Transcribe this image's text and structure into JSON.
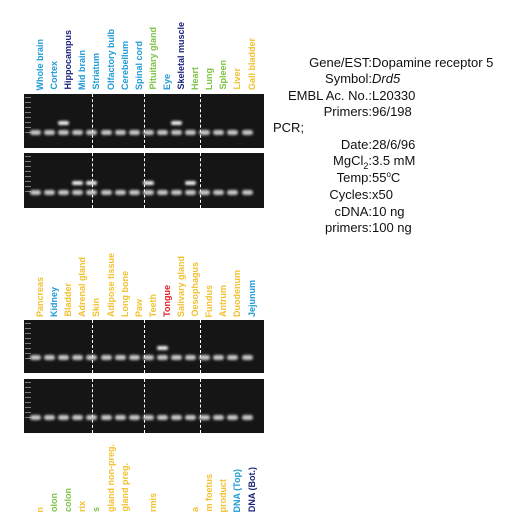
{
  "colors": {
    "blue": "#1e9ad6",
    "navy": "#1a237e",
    "green": "#7cc242",
    "yellow": "#f2c12e",
    "red": "#e01b24",
    "gel": "#151515"
  },
  "top_labels": [
    {
      "text": "Whole brain",
      "color": "#1e9ad6"
    },
    {
      "text": "Cortex",
      "color": "#1e9ad6"
    },
    {
      "text": "Hippocampus",
      "color": "#1a237e"
    },
    {
      "text": "Mid brain",
      "color": "#1e9ad6"
    },
    {
      "text": "Striatum",
      "color": "#1e9ad6"
    },
    {
      "text": "Olfactory bulb",
      "color": "#1e9ad6"
    },
    {
      "text": "Cerebellum",
      "color": "#1e9ad6"
    },
    {
      "text": "Spinal cord",
      "color": "#1e9ad6"
    },
    {
      "text": "Pituitary gland",
      "color": "#7cc242"
    },
    {
      "text": "Eye",
      "color": "#1e9ad6"
    },
    {
      "text": "Skeletal muscle",
      "color": "#1a237e"
    },
    {
      "text": "Heart",
      "color": "#7cc242"
    },
    {
      "text": "Lung",
      "color": "#7cc242"
    },
    {
      "text": "Spleen",
      "color": "#7cc242"
    },
    {
      "text": "Liver",
      "color": "#f2c12e"
    },
    {
      "text": "Gall bladder",
      "color": "#f2c12e"
    }
  ],
  "mid_labels": [
    {
      "text": "Pancreas",
      "color": "#f2c12e"
    },
    {
      "text": "Kidney",
      "color": "#1e9ad6"
    },
    {
      "text": "Bladder",
      "color": "#f2c12e"
    },
    {
      "text": "Adrenal gland",
      "color": "#f2c12e"
    },
    {
      "text": "Skin",
      "color": "#f2c12e"
    },
    {
      "text": "Adipose tissue",
      "color": "#f2c12e"
    },
    {
      "text": "Long bone",
      "color": "#f2c12e"
    },
    {
      "text": "Paw",
      "color": "#f2c12e"
    },
    {
      "text": "Teeth",
      "color": "#f2c12e"
    },
    {
      "text": "Tongue",
      "color": "#e01b24"
    },
    {
      "text": "Salivary gland",
      "color": "#f2c12e"
    },
    {
      "text": "Oesophagus",
      "color": "#f2c12e"
    },
    {
      "text": "Fundus",
      "color": "#f2c12e"
    },
    {
      "text": "Antrum",
      "color": "#f2c12e"
    },
    {
      "text": "Duodenum",
      "color": "#f2c12e"
    },
    {
      "text": "Jejunum",
      "color": "#1e9ad6"
    }
  ],
  "bottom_labels": [
    {
      "text": "n",
      "color": "#f2c12e"
    },
    {
      "text": "olon",
      "color": "#7cc242"
    },
    {
      "text": "colon",
      "color": "#7cc242"
    },
    {
      "text": "rix",
      "color": "#f2c12e"
    },
    {
      "text": "s",
      "color": "#7cc242"
    },
    {
      "text": "gland non-preg.",
      "color": "#f2c12e"
    },
    {
      "text": "gland preg.",
      "color": "#f2c12e"
    },
    {
      "text": "",
      "color": "#f2c12e"
    },
    {
      "text": "rmis",
      "color": "#f2c12e"
    },
    {
      "text": "",
      "color": "#f2c12e"
    },
    {
      "text": "",
      "color": "#f2c12e"
    },
    {
      "text": "a",
      "color": "#f2c12e"
    },
    {
      "text": "m foetus",
      "color": "#f2c12e"
    },
    {
      "text": "product",
      "color": "#f2c12e"
    },
    {
      "text": "DNA (Top)",
      "color": "#1e9ad6"
    },
    {
      "text": "DNA (Bot.)",
      "color": "#1a237e"
    }
  ],
  "gels": [
    {
      "name": "gel-1a",
      "upper_bands": [
        2,
        10
      ]
    },
    {
      "name": "gel-1b",
      "upper_bands": [
        3,
        4,
        8,
        11
      ]
    },
    {
      "name": "gel-2a",
      "upper_bands": [
        9
      ]
    },
    {
      "name": "gel-2b",
      "upper_bands": []
    }
  ],
  "info": {
    "gene_key": "Gene/EST:",
    "gene_val": "Dopamine receptor 5",
    "symbol_key": "Symbol:",
    "symbol_val": "Drd5",
    "embl_key": "EMBL Ac. No.:",
    "embl_val": "L20330",
    "primers_key": "Primers:",
    "primers_val": "96/198",
    "pcr_heading": "PCR;",
    "date_key": "Date:",
    "date_val": "28/6/96",
    "mgcl_key_base": "MgCl",
    "mgcl_key_sub": "2",
    "mgcl_key_colon": ":",
    "mgcl_val": "3.5 mM",
    "temp_key": "Temp:",
    "temp_val_num": "55",
    "temp_val_sup": "o",
    "temp_val_unit": "C",
    "cycles_key": "Cycles:",
    "cycles_val": "x50",
    "cdna_key": "cDNA:",
    "cdna_val": "10 ng",
    "primers2_key": "primers:",
    "primers2_val": "100 ng"
  }
}
